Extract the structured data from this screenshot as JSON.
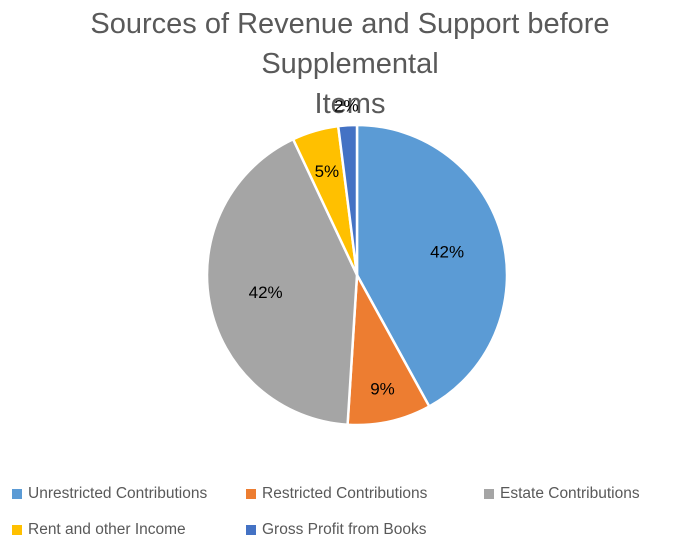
{
  "chart_data": {
    "type": "pie",
    "title_lines": [
      "Sources of Revenue and Support before Supplemental",
      "Items"
    ],
    "slices": [
      {
        "name": "Unrestricted Contributions",
        "value": 42,
        "label": "42%",
        "color": "#5B9BD5"
      },
      {
        "name": "Restricted Contributions",
        "value": 9,
        "label": "9%",
        "color": "#ED7D31"
      },
      {
        "name": "Estate Contributions",
        "value": 42,
        "label": "42%",
        "color": "#A5A5A5"
      },
      {
        "name": "Rent and other Income",
        "value": 5,
        "label": "5%",
        "color": "#FFC000"
      },
      {
        "name": "Gross Profit from Books",
        "value": 2,
        "label": "2%",
        "color": "#4472C4"
      }
    ],
    "legend_position": "bottom"
  }
}
